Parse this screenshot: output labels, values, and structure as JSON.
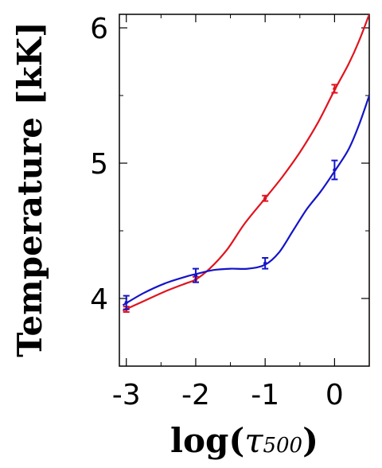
{
  "chart_data": {
    "type": "line",
    "xlabel_main": "log(",
    "xlabel_symbol": "τ",
    "xlabel_subscript": "500",
    "xlabel_close": ")",
    "ylabel": "Temperature [kK]",
    "xlim": [
      -3.1,
      0.5
    ],
    "ylim": [
      3.5,
      6.1
    ],
    "x_ticks": [
      -3,
      -2,
      -1,
      0
    ],
    "x_tick_labels": [
      "-3",
      "-2",
      "-1",
      "0"
    ],
    "y_ticks": [
      4,
      5,
      6
    ],
    "y_tick_labels": [
      "4",
      "5",
      "6"
    ],
    "grid": false,
    "legend": "none",
    "series": [
      {
        "color": "#e0141e",
        "line": [
          [
            -3.05,
            3.91
          ],
          [
            -2.75,
            3.98
          ],
          [
            -2.45,
            4.05
          ],
          [
            -2.15,
            4.11
          ],
          [
            -2.0,
            4.14
          ],
          [
            -1.8,
            4.22
          ],
          [
            -1.55,
            4.36
          ],
          [
            -1.3,
            4.55
          ],
          [
            -1.0,
            4.74
          ],
          [
            -0.75,
            4.9
          ],
          [
            -0.5,
            5.08
          ],
          [
            -0.25,
            5.29
          ],
          [
            0.0,
            5.54
          ],
          [
            0.2,
            5.73
          ],
          [
            0.35,
            5.9
          ],
          [
            0.5,
            6.1
          ]
        ],
        "points": [
          {
            "x": -3.0,
            "y": 3.92,
            "err": 0.02
          },
          {
            "x": -2.0,
            "y": 4.14,
            "err": 0.02
          },
          {
            "x": -1.0,
            "y": 4.74,
            "err": 0.02
          },
          {
            "x": 0.0,
            "y": 5.55,
            "err": 0.03
          }
        ]
      },
      {
        "color": "#1414c8",
        "line": [
          [
            -3.05,
            3.95
          ],
          [
            -2.75,
            4.04
          ],
          [
            -2.45,
            4.11
          ],
          [
            -2.15,
            4.16
          ],
          [
            -2.0,
            4.18
          ],
          [
            -1.75,
            4.21
          ],
          [
            -1.5,
            4.22
          ],
          [
            -1.25,
            4.22
          ],
          [
            -1.0,
            4.25
          ],
          [
            -0.8,
            4.34
          ],
          [
            -0.6,
            4.5
          ],
          [
            -0.4,
            4.66
          ],
          [
            -0.2,
            4.79
          ],
          [
            0.0,
            4.94
          ],
          [
            0.2,
            5.1
          ],
          [
            0.35,
            5.28
          ],
          [
            0.5,
            5.5
          ]
        ],
        "points": [
          {
            "x": -3.0,
            "y": 3.97,
            "err": 0.05
          },
          {
            "x": -2.0,
            "y": 4.17,
            "err": 0.05
          },
          {
            "x": -1.0,
            "y": 4.26,
            "err": 0.04
          },
          {
            "x": 0.0,
            "y": 4.95,
            "err": 0.07
          }
        ]
      }
    ]
  }
}
